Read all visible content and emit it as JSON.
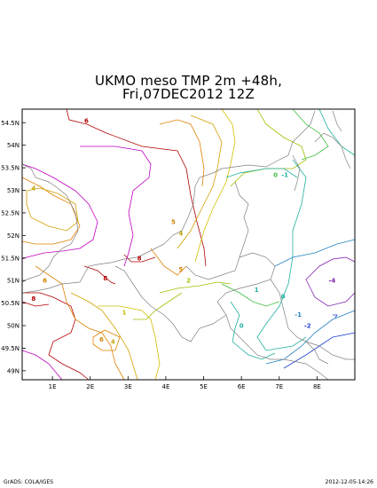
{
  "title": {
    "line1": "UKMO meso TMP 2m +48h,",
    "line2": "Fri,07DEC2012 12Z"
  },
  "axes": {
    "lat_ticks": [
      {
        "label": "54.5N",
        "lat": 54.5
      },
      {
        "label": "54N",
        "lat": 54.0
      },
      {
        "label": "53.5N",
        "lat": 53.5
      },
      {
        "label": "53N",
        "lat": 53.0
      },
      {
        "label": "52.5N",
        "lat": 52.5
      },
      {
        "label": "52N",
        "lat": 52.0
      },
      {
        "label": "51.5N",
        "lat": 51.5
      },
      {
        "label": "51N",
        "lat": 51.0
      },
      {
        "label": "50.5N",
        "lat": 50.5
      },
      {
        "label": "50N",
        "lat": 50.0
      },
      {
        "label": "49.5N",
        "lat": 49.5
      },
      {
        "label": "49N",
        "lat": 49.0
      }
    ],
    "lon_ticks": [
      {
        "label": "1E",
        "lon": 1
      },
      {
        "label": "2E",
        "lon": 2
      },
      {
        "label": "3E",
        "lon": 3
      },
      {
        "label": "4E",
        "lon": 4
      },
      {
        "label": "5E",
        "lon": 5
      },
      {
        "label": "6E",
        "lon": 6
      },
      {
        "label": "7E",
        "lon": 7
      },
      {
        "label": "8E",
        "lon": 8
      }
    ]
  },
  "contour_labels": [
    {
      "text": "6",
      "lon": 1.9,
      "lat": 54.5,
      "color": "#b00000"
    },
    {
      "text": "4",
      "lon": 0.5,
      "lat": 53.0,
      "color": "#c0a000"
    },
    {
      "text": "5",
      "lon": 4.2,
      "lat": 52.25,
      "color": "#d08000"
    },
    {
      "text": "4",
      "lon": 4.4,
      "lat": 52.0,
      "color": "#c0a000"
    },
    {
      "text": "8",
      "lon": 3.3,
      "lat": 51.45,
      "color": "#b00000"
    },
    {
      "text": "8",
      "lon": 2.4,
      "lat": 51.0,
      "color": "#b00000"
    },
    {
      "text": "6",
      "lon": 0.8,
      "lat": 50.95,
      "color": "#d08000"
    },
    {
      "text": "8",
      "lon": 0.5,
      "lat": 50.55,
      "color": "#b00000"
    },
    {
      "text": "5",
      "lon": 4.4,
      "lat": 51.2,
      "color": "#d08000"
    },
    {
      "text": "2",
      "lon": 4.6,
      "lat": 50.95,
      "color": "#a0c000"
    },
    {
      "text": "1",
      "lon": 2.9,
      "lat": 50.25,
      "color": "#c0c000"
    },
    {
      "text": "6",
      "lon": 2.3,
      "lat": 49.65,
      "color": "#d08000"
    },
    {
      "text": "4",
      "lon": 2.6,
      "lat": 49.6,
      "color": "#c0a000"
    },
    {
      "text": "0",
      "lon": 6.9,
      "lat": 53.3,
      "color": "#40c040"
    },
    {
      "text": "-1",
      "lon": 7.15,
      "lat": 53.3,
      "color": "#20b0a0"
    },
    {
      "text": "1",
      "lon": 6.4,
      "lat": 50.75,
      "color": "#20b0a0"
    },
    {
      "text": "0",
      "lon": 7.1,
      "lat": 50.6,
      "color": "#20b0a0"
    },
    {
      "text": "-1",
      "lon": 7.5,
      "lat": 50.2,
      "color": "#2080c0"
    },
    {
      "text": "-2",
      "lon": 7.75,
      "lat": 49.95,
      "color": "#2040d0"
    },
    {
      "text": "-4",
      "lon": 8.4,
      "lat": 50.95,
      "color": "#8020b0"
    },
    {
      "text": "0",
      "lon": 6.0,
      "lat": 49.95,
      "color": "#20b0a0"
    }
  ],
  "footer": {
    "left": "GrADS: COLA/IGES",
    "right": "2012-12-05-14:26"
  }
}
